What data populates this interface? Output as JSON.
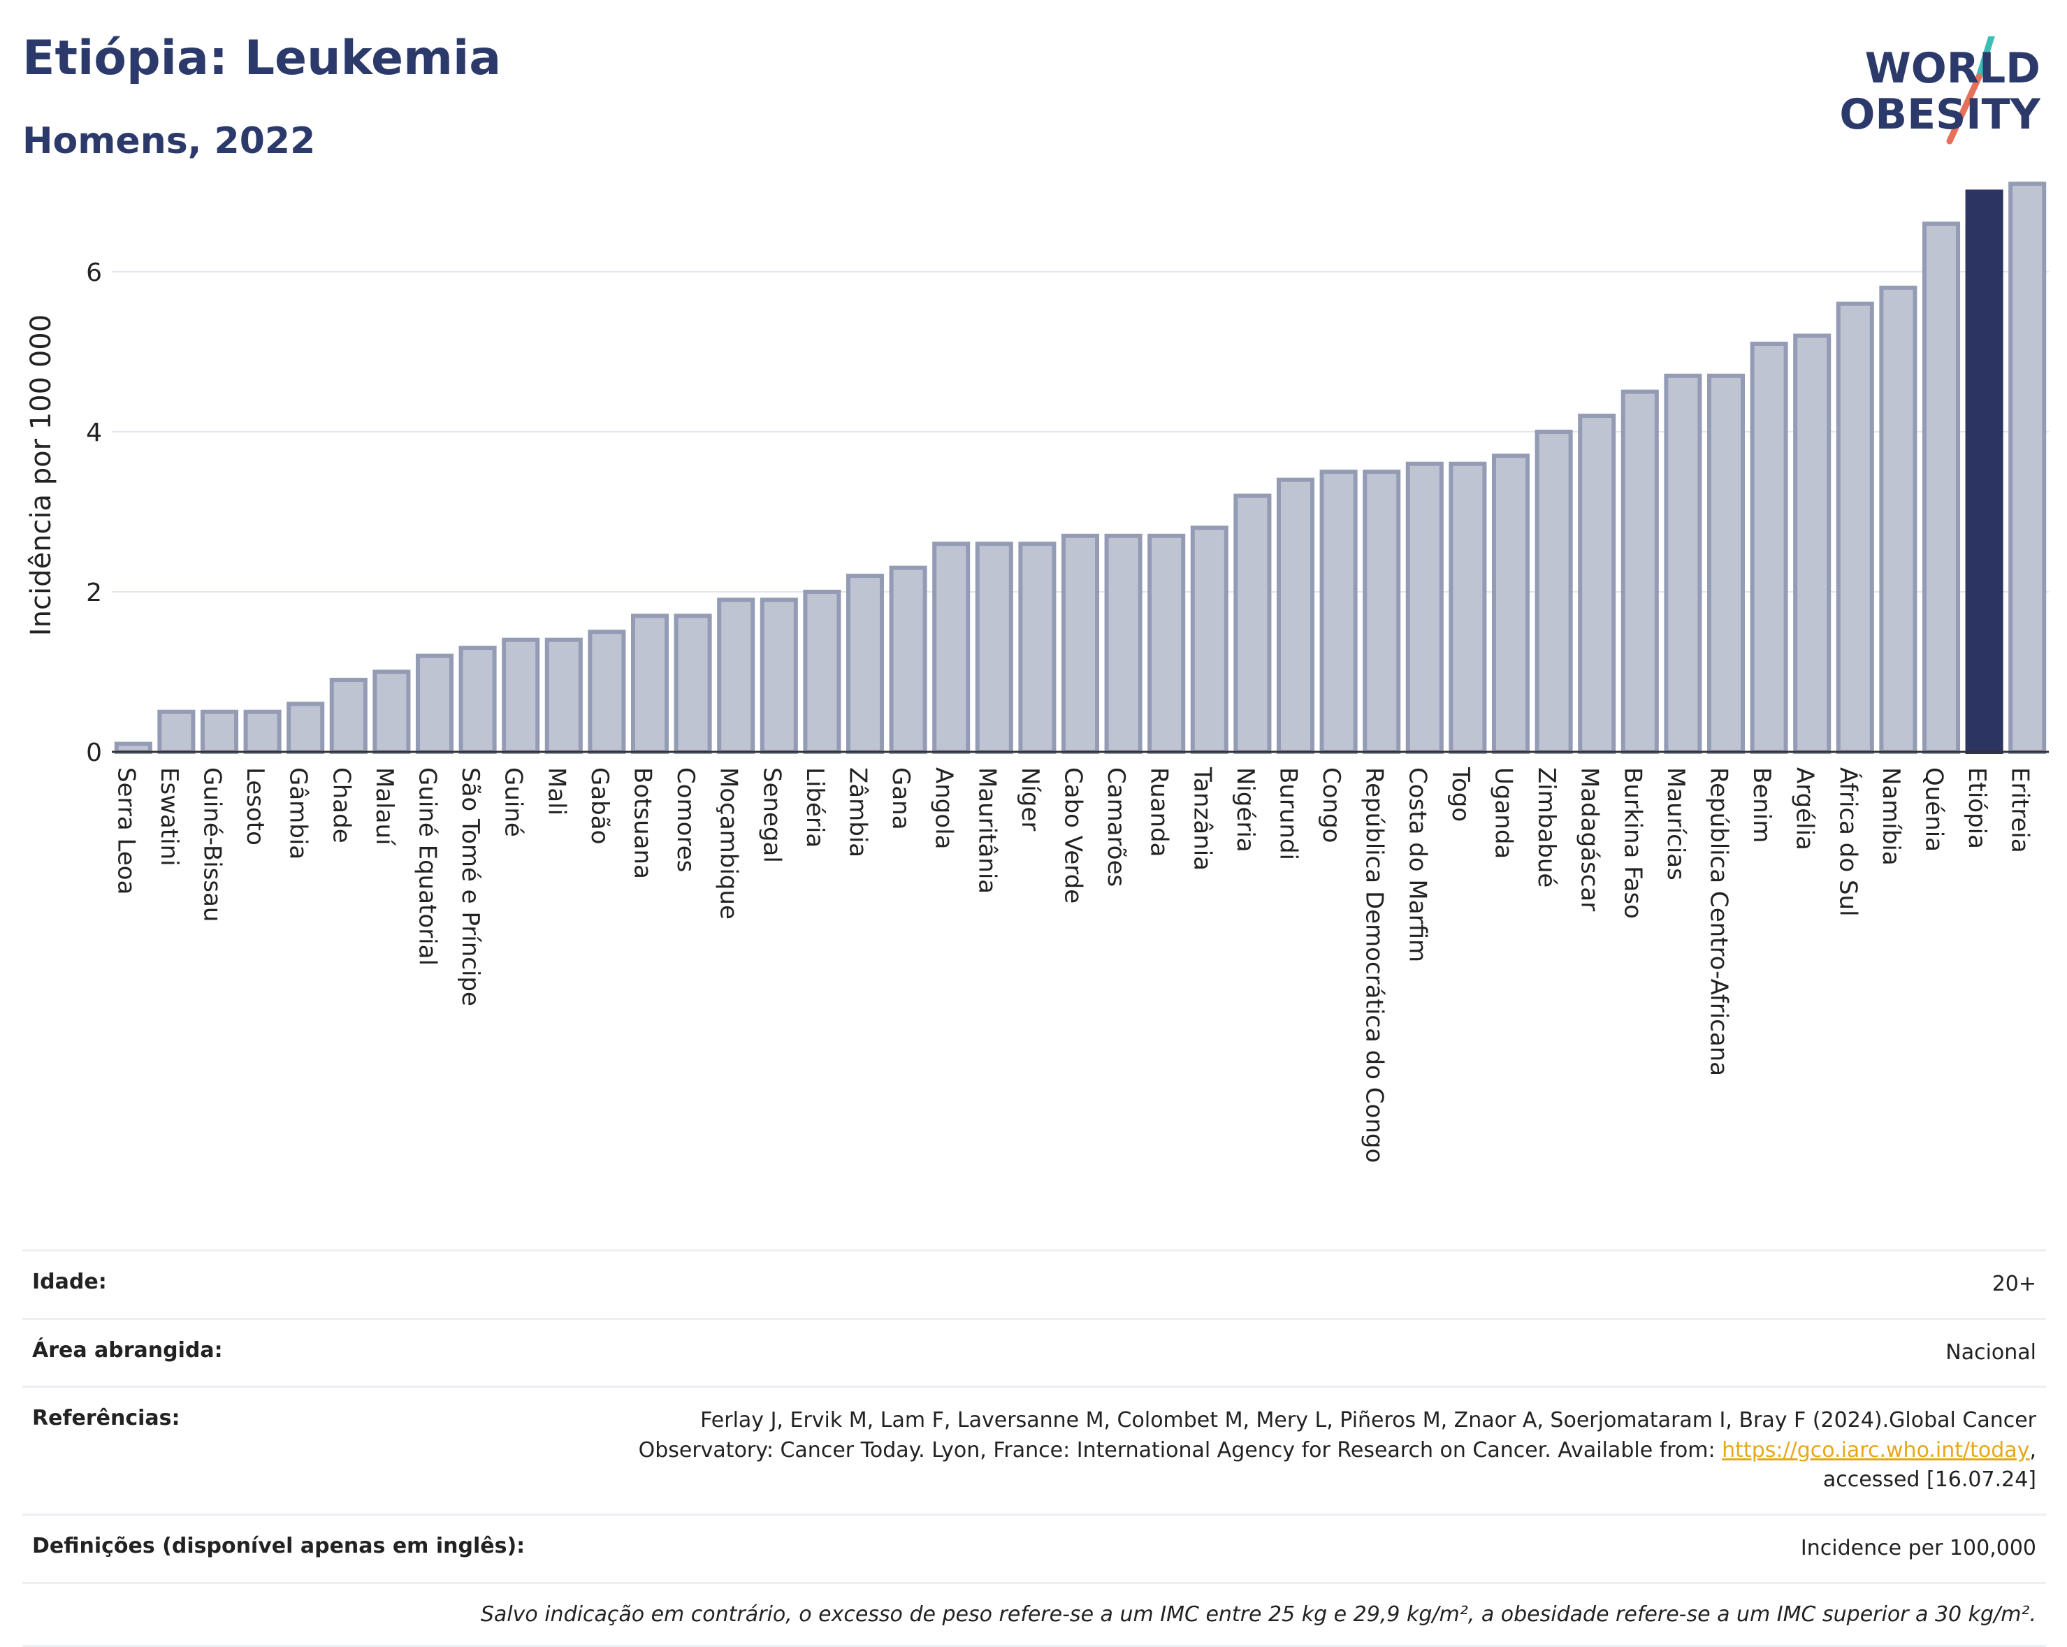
{
  "title": "Etiópia: Leukemia",
  "subtitle": "Homens, 2022",
  "logo": {
    "line1": "WORLD",
    "line2": "OBESITY"
  },
  "chart_data": {
    "type": "bar",
    "ylabel": "Incidência por 100 000",
    "ylim": [
      0,
      7.3
    ],
    "yticks": [
      0,
      2,
      4,
      6
    ],
    "grid": true,
    "highlight_category": "Etiópia",
    "colors": {
      "bar": "#bfc4d3",
      "bar_border": "#949bb5",
      "highlight": "#2c3561"
    },
    "categories": [
      "Serra Leoa",
      "Eswatini",
      "Guiné-Bissau",
      "Lesoto",
      "Gâmbia",
      "Chade",
      "Malauí",
      "Guiné Equatorial",
      "São Tomé e Príncipe",
      "Guiné",
      "Mali",
      "Gabão",
      "Botsuana",
      "Comores",
      "Moçambique",
      "Senegal",
      "Libéria",
      "Zâmbia",
      "Gana",
      "Angola",
      "Mauritânia",
      "Níger",
      "Cabo Verde",
      "Camarões",
      "Ruanda",
      "Tanzânia",
      "Nigéria",
      "Burundi",
      "Congo",
      "República Democrática do Congo",
      "Costa do Marfim",
      "Togo",
      "Uganda",
      "Zimbabué",
      "Madagáscar",
      "Burkina Faso",
      "Maurícias",
      "República Centro-Africana",
      "Benim",
      "Argélia",
      "África do Sul",
      "Namíbia",
      "Quénia",
      "Etiópia",
      "Eritreia"
    ],
    "values": [
      0.1,
      0.5,
      0.5,
      0.5,
      0.6,
      0.9,
      1.0,
      1.2,
      1.3,
      1.4,
      1.4,
      1.5,
      1.7,
      1.7,
      1.9,
      1.9,
      2.0,
      2.2,
      2.3,
      2.6,
      2.6,
      2.6,
      2.7,
      2.7,
      2.7,
      2.8,
      3.2,
      3.4,
      3.5,
      3.5,
      3.6,
      3.6,
      3.7,
      4.0,
      4.2,
      4.5,
      4.7,
      4.7,
      5.1,
      5.2,
      5.6,
      5.8,
      6.6,
      7.0,
      7.1
    ]
  },
  "info": {
    "age_label": "Idade:",
    "age_value": "20+",
    "area_label": "Área abrangida:",
    "area_value": "Nacional",
    "ref_label": "Referências:",
    "ref_text_1": "Ferlay J, Ervik M, Lam F, Laversanne M, Colombet M, Mery L, Piñeros M, Znaor A, Soerjomataram I, Bray F (2024).Global Cancer",
    "ref_text_2": "Observatory: Cancer Today. Lyon, France: International Agency for Research on Cancer. Available from: ",
    "ref_link": "https://gco.iarc.who.int/today",
    "ref_text_3": ",",
    "ref_text_4": "accessed [16.07.24]",
    "def_label": "Definições (disponível apenas em inglês):",
    "def_value": "Incidence per 100,000",
    "note": "Salvo indicação em contrário, o excesso de peso refere-se a um IMC entre 25 kg e 29,9 kg/m², a obesidade refere-se a um IMC superior a 30 kg/m²."
  }
}
